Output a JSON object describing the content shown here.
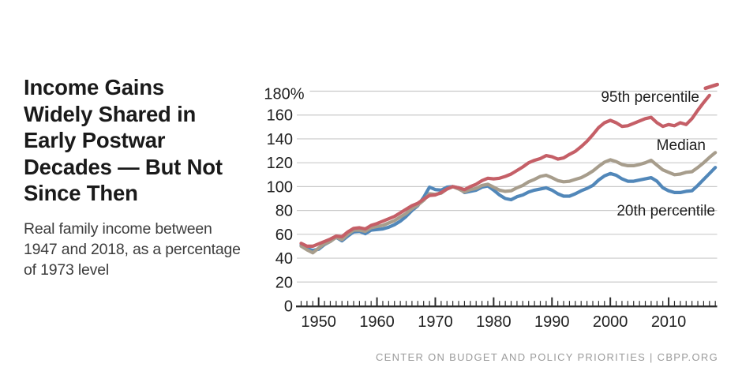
{
  "header": {
    "title_lines": [
      "Income Gains",
      "Widely Shared in",
      "Early Postwar",
      "Decades — But Not",
      "Since Then"
    ],
    "subtitle_lines": [
      "Real family income between",
      "1947 and 2018, as a percentage",
      "of 1973 level"
    ]
  },
  "footer": {
    "credit": "CENTER ON BUDGET AND POLICY PRIORITIES | CBPP.ORG"
  },
  "chart_data": {
    "type": "line",
    "title": "Income Gains Widely Shared in Early Postwar Decades — But Not Since Then",
    "subtitle": "Real family income between 1947 and 2018, as a percentage of 1973 level",
    "x_years_start": 1947,
    "x_years_end": 2018,
    "x_axis_tick_years": [
      1950,
      1960,
      1970,
      1980,
      1990,
      2000,
      2010
    ],
    "x_minor_ticks": "every year 1947-2018",
    "y_axis_ticks": [
      0,
      20,
      40,
      60,
      80,
      100,
      120,
      140,
      160,
      180
    ],
    "y_axis_top_tick_label": "180%",
    "ylim": [
      0,
      190
    ],
    "grid": "horizontal-light",
    "legend_position": "labels-inline-right",
    "colors": {
      "p95": "#c55f67",
      "median": "#a79d8c",
      "p20": "#5187b9",
      "grid": "#cacaca",
      "axis": "#2d2d2d"
    },
    "series": [
      {
        "id": "p95",
        "label": "95th percentile",
        "color": "#c55f67",
        "last_point_dashed": true,
        "values": [
          52.5,
          50,
          50,
          52,
          54,
          56,
          58.5,
          58,
          62,
          65,
          65.5,
          64.5,
          67.5,
          69,
          71,
          73,
          75,
          78,
          81,
          84,
          86,
          89.5,
          92.5,
          93,
          95,
          98,
          100,
          99,
          97.5,
          100,
          102,
          105,
          107,
          106.5,
          107,
          108.5,
          110.5,
          113.5,
          116.5,
          120,
          122,
          123.5,
          126,
          125,
          123,
          124,
          127,
          129.5,
          133.5,
          138,
          143.5,
          149.5,
          153.5,
          155.5,
          153.5,
          150.5,
          151,
          153,
          155,
          157,
          158,
          153.5,
          150.5,
          152,
          151,
          153.5,
          152,
          157,
          164,
          170.5,
          176.5,
          184
        ]
      },
      {
        "id": "median",
        "label": "Median",
        "color": "#a79d8c",
        "last_point_dashed": false,
        "values": [
          50,
          47,
          44.5,
          48.5,
          52,
          54,
          57.5,
          55.5,
          60,
          63.5,
          63.5,
          62.5,
          65.5,
          66.5,
          67.5,
          69.5,
          71.5,
          74.5,
          77.5,
          81.5,
          84.5,
          88.5,
          94,
          93.5,
          94.5,
          98,
          100,
          98,
          95.5,
          97.5,
          98.5,
          101,
          102,
          99.5,
          97,
          96,
          96.5,
          99,
          101,
          104,
          106,
          108.5,
          109.5,
          107.5,
          105,
          104,
          104.5,
          106,
          107.5,
          110,
          113,
          117,
          120.5,
          122.5,
          121,
          118.5,
          117.5,
          117.5,
          118.5,
          120,
          122,
          118,
          114,
          112,
          110,
          110.5,
          112,
          112.5,
          116,
          120,
          124.5,
          128.5
        ]
      },
      {
        "id": "p20",
        "label": "20th percentile",
        "color": "#5187b9",
        "last_point_dashed": false,
        "values": [
          51,
          48,
          46.5,
          47.5,
          51.5,
          54,
          57.5,
          54.5,
          58.5,
          62,
          62.5,
          60.5,
          63.5,
          64,
          64.5,
          66,
          68,
          71,
          75,
          80,
          84,
          91,
          99.5,
          97.5,
          97,
          99.5,
          100,
          99,
          95,
          96,
          97,
          99.5,
          100.5,
          97,
          93,
          90,
          89,
          91.5,
          93,
          95.5,
          97,
          98,
          99,
          97,
          94,
          92,
          92,
          94,
          96.5,
          98.5,
          101,
          105.5,
          109,
          111,
          109.5,
          106.5,
          104.5,
          104.5,
          105.5,
          106.5,
          107.5,
          104.5,
          99,
          96.5,
          95,
          95,
          96,
          96.5,
          101,
          106,
          111,
          116
        ]
      }
    ]
  }
}
